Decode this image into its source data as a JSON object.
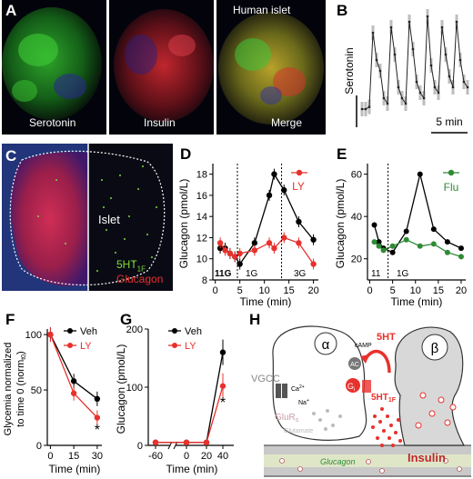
{
  "panels": {
    "A": {
      "label": "A",
      "images": [
        {
          "caption": "Serotonin"
        },
        {
          "caption": "Insulin"
        },
        {
          "caption": "Merge"
        }
      ],
      "top_caption": "Human islet"
    },
    "B": {
      "label": "B",
      "ylabel": "Serotonin",
      "scalebar": "5 min"
    },
    "C": {
      "label": "C",
      "islet_label": "Islet",
      "receptor_label": "5HT",
      "receptor_sub": "1F",
      "stain_label": "Glucagon"
    },
    "D": {
      "label": "D",
      "ylabel": "Glucagon (pmol/L)",
      "xlabel": "Time (min)",
      "legend": "LY",
      "xticks": [
        "0",
        "5",
        "10",
        "15",
        "20"
      ],
      "yticks": [
        "8",
        "10",
        "12",
        "14",
        "16",
        "18"
      ],
      "phases": [
        "11G",
        "1G",
        "3G"
      ]
    },
    "E": {
      "label": "E",
      "ylabel": "Glucagon (pmol/L)",
      "xlabel": "Time (min)",
      "legend": "Flu",
      "xticks": [
        "0",
        "5",
        "10",
        "15",
        "20"
      ],
      "yticks": [
        "20",
        "40",
        "60"
      ],
      "phases": [
        "11",
        "1G"
      ]
    },
    "F": {
      "label": "F",
      "ylabel": "Glycemia normalized\nto time 0 (norm₀)",
      "ylabel_line1": "Glycemia normalized",
      "ylabel_line2": "to time 0 (norm",
      "ylabel_sub": "t0",
      "ylabel_end": ")",
      "xlabel": "Time (min)",
      "legend": [
        "Veh",
        "LY"
      ],
      "xticks": [
        "0",
        "15",
        "30"
      ],
      "yticks": [
        "0",
        "50",
        "100"
      ],
      "star": "*"
    },
    "G": {
      "label": "G",
      "ylabel": "Glucagon (pmol/L)",
      "xlabel": "Time (min)",
      "legend": [
        "Veh",
        "LY"
      ],
      "xticks": [
        "-60",
        "0",
        "20",
        "40"
      ],
      "yticks": [
        "0",
        "100",
        "200"
      ],
      "star": "*"
    },
    "H": {
      "label": "H",
      "alpha": "α",
      "beta": "β",
      "camp": "cAMP",
      "ac": "AC",
      "gi": "G",
      "gi_sub": "i",
      "vgcc": "VGCC",
      "ca": "Ca",
      "ca_sup": "2+",
      "na": "Na",
      "na_sup": "+",
      "glur": "GluR",
      "glur_sub": "s",
      "glutamate": "Glutamate",
      "ht": "5HT",
      "ht1f": "5HT",
      "ht1f_sub": "1F",
      "vessel": "Glucagon",
      "insulin": "Insulin"
    }
  },
  "chart_data": [
    {
      "panel": "B",
      "type": "line",
      "title": "",
      "ylabel": "Serotonin",
      "xlabel": "",
      "series": [
        {
          "name": "",
          "x": [
            0,
            1,
            2,
            3,
            4,
            5,
            6,
            7,
            8,
            9,
            10,
            11,
            12,
            13,
            14,
            15,
            16,
            17,
            18,
            19,
            20,
            21,
            22,
            23,
            24,
            25,
            26,
            27,
            28,
            29
          ],
          "values": [
            0.1,
            0.1,
            0.12,
            0.8,
            0.55,
            0.45,
            0.2,
            0.15,
            0.85,
            0.6,
            0.3,
            0.2,
            0.15,
            0.9,
            0.65,
            0.35,
            0.25,
            0.2,
            0.95,
            0.5,
            0.3,
            0.25,
            0.85,
            0.6,
            0.4,
            0.3,
            0.9,
            0.55,
            0.35,
            0.3
          ]
        }
      ]
    },
    {
      "panel": "D",
      "type": "line",
      "xlabel": "Time (min)",
      "ylabel": "Glucagon (pmol/L)",
      "ylim": [
        8,
        19
      ],
      "xlim": [
        0,
        21
      ],
      "series": [
        {
          "name": "",
          "color": "#000000",
          "x": [
            1,
            2,
            3,
            4,
            5,
            8,
            11,
            12,
            14,
            17,
            20
          ],
          "values": [
            11,
            11,
            10.5,
            10.2,
            9.5,
            11.5,
            16,
            18,
            16.5,
            13.5,
            11.8
          ]
        },
        {
          "name": "LY",
          "color": "#e8312d",
          "x": [
            1,
            2,
            3,
            4,
            5,
            8,
            11,
            12,
            14,
            17,
            20
          ],
          "values": [
            11.5,
            10.8,
            10.5,
            10.2,
            10.5,
            10.8,
            11.5,
            11,
            12,
            11.5,
            9.5
          ]
        }
      ]
    },
    {
      "panel": "E",
      "type": "line",
      "xlabel": "Time (min)",
      "ylabel": "Glucagon (pmol/L)",
      "ylim": [
        10,
        65
      ],
      "xlim": [
        0,
        21
      ],
      "series": [
        {
          "name": "",
          "color": "#000000",
          "x": [
            1,
            2,
            3,
            5,
            8,
            11,
            14,
            17,
            20
          ],
          "values": [
            36,
            28,
            25,
            23,
            33,
            60,
            34,
            28,
            25
          ]
        },
        {
          "name": "Flu",
          "color": "#2e8b35",
          "x": [
            1,
            2,
            3,
            5,
            8,
            11,
            14,
            17,
            20
          ],
          "values": [
            28,
            26,
            24,
            26,
            29,
            26,
            27,
            23,
            21
          ]
        }
      ]
    },
    {
      "panel": "F",
      "type": "line",
      "xlabel": "Time (min)",
      "ylim": [
        0,
        105
      ],
      "series": [
        {
          "name": "Veh",
          "color": "#000000",
          "x": [
            0,
            15,
            30
          ],
          "values": [
            100,
            58,
            42
          ]
        },
        {
          "name": "LY",
          "color": "#e8312d",
          "x": [
            0,
            15,
            30
          ],
          "values": [
            100,
            47,
            25
          ]
        }
      ]
    },
    {
      "panel": "G",
      "type": "line",
      "xlabel": "Time (min)",
      "ylabel": "Glucagon (pmol/L)",
      "ylim": [
        0,
        200
      ],
      "series": [
        {
          "name": "Veh",
          "color": "#000000",
          "x": [
            -60,
            0,
            20,
            40
          ],
          "values": [
            5,
            5,
            5,
            160
          ]
        },
        {
          "name": "LY",
          "color": "#e8312d",
          "x": [
            -60,
            0,
            20,
            40
          ],
          "values": [
            5,
            5,
            5,
            102
          ]
        }
      ]
    }
  ]
}
